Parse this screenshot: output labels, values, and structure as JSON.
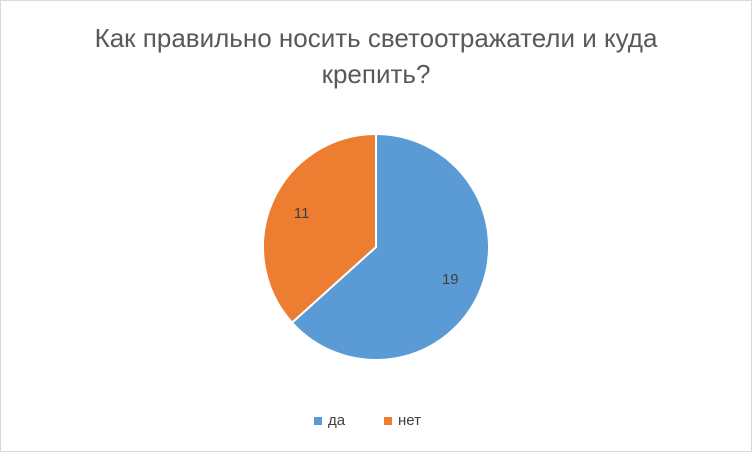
{
  "chart_data": {
    "type": "pie",
    "title": "Как правильно носить светоотражатели и куда крепить?",
    "categories": [
      "да",
      "нет"
    ],
    "values": [
      19,
      11
    ],
    "colors": [
      "#5b9bd5",
      "#ed7d31"
    ],
    "legend": "bottom"
  }
}
